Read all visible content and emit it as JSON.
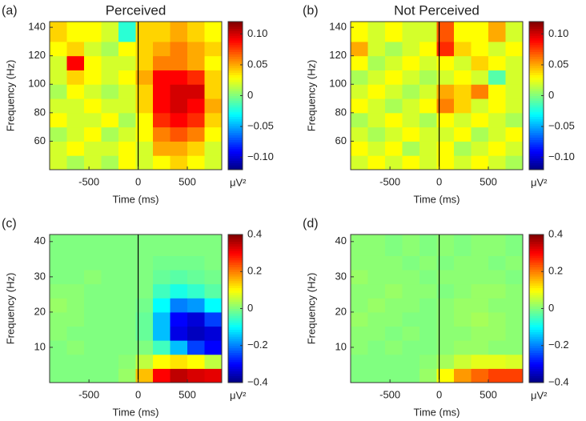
{
  "chart_data": [
    {
      "type": "heatmap",
      "panel_label": "(a)",
      "title": "Perceived",
      "xlabel": "Time (ms)",
      "ylabel": "Frequency (Hz)",
      "colorbar_label": "μV²",
      "colormap": "jet",
      "vline": 0,
      "xlim": [
        -900,
        850
      ],
      "xticks": [
        -500,
        0,
        500
      ],
      "ylim": [
        40,
        144
      ],
      "yticks": [
        60,
        80,
        100,
        120,
        140
      ],
      "clim": [
        -0.12,
        0.12
      ],
      "cticks": [
        {
          "value": -0.1,
          "label": "−0.10"
        },
        {
          "value": -0.05,
          "label": "−0.05"
        },
        0,
        0.05,
        {
          "value": 0.1,
          "label": "0.10"
        }
      ],
      "x": [
        -812.5,
        -637.5,
        -462.5,
        -287.5,
        -112.5,
        62.5,
        237.5,
        412.5,
        587.5,
        762.5
      ],
      "y": [
        45,
        55,
        65,
        75,
        85,
        95,
        105,
        115,
        125,
        135
      ],
      "z": [
        [
          0.02,
          0.01,
          0.02,
          0.01,
          0.03,
          0.02,
          0.03,
          0.04,
          0.03,
          0.02
        ],
        [
          0.02,
          0.03,
          0.02,
          0.02,
          0.03,
          0.02,
          0.05,
          0.05,
          0.04,
          0.02
        ],
        [
          0.01,
          0.02,
          0.03,
          0.01,
          0.02,
          0.03,
          0.06,
          0.07,
          0.06,
          0.03
        ],
        [
          0.03,
          0.02,
          0.02,
          0.03,
          0.01,
          0.03,
          0.08,
          0.09,
          0.08,
          0.04
        ],
        [
          0.02,
          0.02,
          0.03,
          0.02,
          0.02,
          0.04,
          0.09,
          0.1,
          0.09,
          0.05
        ],
        [
          0.01,
          0.03,
          0.02,
          0.01,
          0.02,
          0.04,
          0.09,
          0.1,
          0.1,
          0.04
        ],
        [
          0.02,
          0.04,
          0.03,
          0.02,
          0.03,
          0.05,
          0.09,
          0.09,
          0.08,
          0.04
        ],
        [
          0.02,
          0.09,
          0.03,
          0.02,
          0.02,
          0.04,
          0.06,
          0.06,
          0.05,
          0.03
        ],
        [
          0.03,
          0.04,
          0.02,
          0.01,
          0.03,
          0.04,
          0.05,
          0.06,
          0.05,
          0.04
        ],
        [
          0.04,
          0.03,
          0.03,
          0.02,
          -0.02,
          0.04,
          0.04,
          0.05,
          0.04,
          0.03
        ]
      ]
    },
    {
      "type": "heatmap",
      "panel_label": "(b)",
      "title": "Not Perceived",
      "xlabel": "Time (ms)",
      "ylabel": "Frequency (Hz)",
      "colorbar_label": "μV²",
      "colormap": "jet",
      "vline": 0,
      "xlim": [
        -900,
        850
      ],
      "xticks": [
        -500,
        0,
        500
      ],
      "ylim": [
        40,
        144
      ],
      "yticks": [
        60,
        80,
        100,
        120,
        140
      ],
      "clim": [
        -0.12,
        0.12
      ],
      "cticks": [
        {
          "value": -0.1,
          "label": "−0.10"
        },
        {
          "value": -0.05,
          "label": "−0.05"
        },
        0,
        0.05,
        {
          "value": 0.1,
          "label": "0.10"
        }
      ],
      "x": [
        -812.5,
        -637.5,
        -462.5,
        -287.5,
        -112.5,
        62.5,
        237.5,
        412.5,
        587.5,
        762.5
      ],
      "y": [
        45,
        55,
        65,
        75,
        85,
        95,
        105,
        115,
        125,
        135
      ],
      "z": [
        [
          0.02,
          0.03,
          0.02,
          0.03,
          0.02,
          0.03,
          0.02,
          0.03,
          0.02,
          0.01
        ],
        [
          0.03,
          0.02,
          0.03,
          0.01,
          0.02,
          0.03,
          0.01,
          0.02,
          0.03,
          0.02
        ],
        [
          0.02,
          0.01,
          0.02,
          0.03,
          0.02,
          0.02,
          0.03,
          0.01,
          0.02,
          0.03
        ],
        [
          0.01,
          0.02,
          0.03,
          0.02,
          0.01,
          0.03,
          0.02,
          0.03,
          0.02,
          0.01
        ],
        [
          0.03,
          0.02,
          0.01,
          0.02,
          0.03,
          0.06,
          0.04,
          0.02,
          0.03,
          0.02
        ],
        [
          0.02,
          0.03,
          0.02,
          0.01,
          0.02,
          0.05,
          0.04,
          0.06,
          0.03,
          0.02
        ],
        [
          0.01,
          0.02,
          0.03,
          0.02,
          0.01,
          0.02,
          0.03,
          0.02,
          -0.01,
          0.02
        ],
        [
          0.03,
          0.01,
          0.02,
          0.03,
          0.02,
          0.03,
          0.02,
          0.04,
          0.03,
          0.02
        ],
        [
          0.05,
          0.02,
          0.01,
          0.02,
          0.03,
          0.08,
          0.04,
          0.03,
          0.02,
          0.03
        ],
        [
          0.03,
          0.02,
          0.03,
          0.02,
          0.02,
          0.07,
          0.03,
          0.03,
          0.05,
          0.02
        ]
      ]
    },
    {
      "type": "heatmap",
      "panel_label": "(c)",
      "xlabel": "Time (ms)",
      "ylabel": "Frequency (Hz)",
      "colorbar_label": "μV²",
      "colormap": "jet",
      "vline": 0,
      "xlim": [
        -900,
        850
      ],
      "xticks": [
        -500,
        0,
        500
      ],
      "ylim": [
        0,
        42
      ],
      "yticks": [
        10,
        20,
        30,
        40
      ],
      "clim": [
        -0.4,
        0.4
      ],
      "cticks": [
        {
          "value": -0.4,
          "label": "−0.4"
        },
        {
          "value": -0.2,
          "label": "−0.2"
        },
        0,
        0.2,
        0.4
      ],
      "x": [
        -812.5,
        -637.5,
        -462.5,
        -287.5,
        -112.5,
        62.5,
        237.5,
        412.5,
        587.5,
        762.5
      ],
      "y": [
        2,
        6,
        10,
        14,
        18,
        22,
        26,
        30,
        34,
        38
      ],
      "z": [
        [
          0,
          0,
          0,
          0,
          0.02,
          0.15,
          0.3,
          0.35,
          0.33,
          0.32
        ],
        [
          0,
          0,
          0,
          0,
          0.01,
          0.05,
          0.1,
          0.12,
          0.1,
          0.05
        ],
        [
          0,
          0.01,
          0,
          0,
          0,
          0,
          -0.05,
          -0.15,
          -0.25,
          -0.3
        ],
        [
          0.01,
          0,
          0,
          0,
          0,
          -0.02,
          -0.15,
          -0.32,
          -0.35,
          -0.33
        ],
        [
          0.01,
          0.01,
          0,
          0,
          0,
          -0.02,
          -0.15,
          -0.3,
          -0.33,
          -0.25
        ],
        [
          0.02,
          0.01,
          0,
          0,
          0,
          -0.01,
          -0.1,
          -0.2,
          -0.18,
          -0.1
        ],
        [
          0.01,
          0.01,
          0,
          0,
          0,
          0,
          -0.05,
          -0.08,
          -0.06,
          -0.03
        ],
        [
          0,
          0,
          0.01,
          0,
          0,
          0,
          -0.02,
          -0.03,
          -0.02,
          -0.01
        ],
        [
          0,
          0,
          0,
          0,
          0,
          0,
          -0.01,
          -0.01,
          -0.01,
          0
        ],
        [
          0,
          0,
          0,
          0,
          0,
          0,
          0,
          0,
          0,
          0
        ]
      ]
    },
    {
      "type": "heatmap",
      "panel_label": "(d)",
      "xlabel": "Time (ms)",
      "ylabel": "Frequency (Hz)",
      "colorbar_label": "μV²",
      "colormap": "jet",
      "vline": 0,
      "xlim": [
        -900,
        850
      ],
      "xticks": [
        -500,
        0,
        500
      ],
      "ylim": [
        0,
        42
      ],
      "yticks": [
        10,
        20,
        30,
        40
      ],
      "clim": [
        -0.4,
        0.4
      ],
      "cticks": [
        {
          "value": -0.4,
          "label": "−0.4"
        },
        {
          "value": -0.2,
          "label": "−0.2"
        },
        0,
        0.2,
        0.4
      ],
      "x": [
        -812.5,
        -637.5,
        -462.5,
        -287.5,
        -112.5,
        62.5,
        237.5,
        412.5,
        587.5,
        762.5
      ],
      "y": [
        2,
        6,
        10,
        14,
        18,
        22,
        26,
        30,
        34,
        38
      ],
      "z": [
        [
          0,
          0,
          0,
          0,
          0.02,
          0.1,
          0.18,
          0.22,
          0.25,
          0.25
        ],
        [
          0,
          0,
          0,
          0,
          0.01,
          0.03,
          0.06,
          0.08,
          0.08,
          0.07
        ],
        [
          0.01,
          0,
          0.01,
          0,
          0,
          0.01,
          0.02,
          0.02,
          0.01,
          0.01
        ],
        [
          0.01,
          0.01,
          0,
          0.01,
          0,
          0.01,
          0.01,
          0.02,
          0.02,
          0.01
        ],
        [
          0.02,
          0.01,
          0.01,
          0,
          0,
          0.01,
          0.02,
          0.03,
          0.02,
          0.01
        ],
        [
          0.01,
          0.02,
          0.01,
          0.01,
          0,
          0.01,
          0.02,
          0.02,
          0.01,
          0.01
        ],
        [
          0.01,
          0.01,
          0.02,
          0.01,
          0.01,
          0,
          0.01,
          0.02,
          0.02,
          0.01
        ],
        [
          0.02,
          0.01,
          0.01,
          0.01,
          0,
          0.01,
          0.01,
          0.01,
          0.01,
          0
        ],
        [
          0.01,
          0.01,
          0.01,
          0,
          0.01,
          0,
          0.01,
          0.01,
          0,
          0.01
        ],
        [
          0.01,
          0.01,
          0,
          0.01,
          0,
          0.01,
          0,
          0.01,
          0.01,
          0
        ]
      ]
    }
  ]
}
